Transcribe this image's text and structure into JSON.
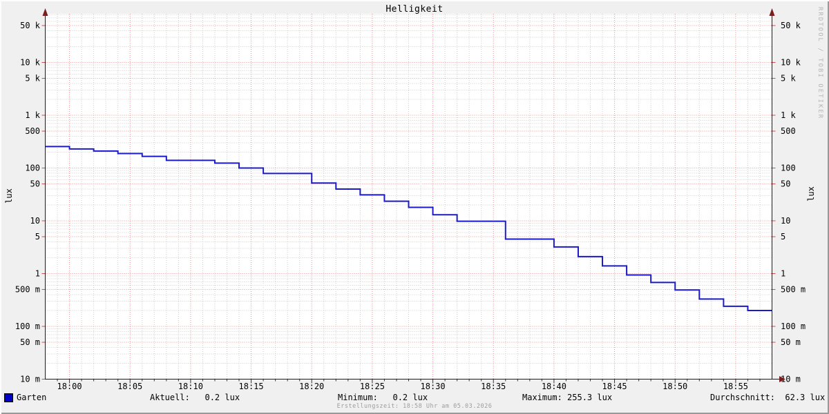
{
  "title": "Helligkeit",
  "watermark": "RRDTOOL / TOBI OETIKER",
  "footer": "Erstellungszeit: 18:58 Uhr am 05.03.2026",
  "y_axis": {
    "left_label": "lux",
    "right_label": "lux"
  },
  "legend": {
    "series_label": "Garten",
    "series_color": "#0000c8",
    "stats": [
      "Aktuell:   0.2 lux",
      "Minimum:   0.2 lux",
      "Maximum: 255.3 lux",
      "Durchschnitt:  62.3 lux"
    ]
  },
  "chart_data": {
    "type": "line",
    "line_style": "step-after",
    "title": "Helligkeit",
    "ylabel": "lux",
    "y_scale": "log",
    "ylim": [
      0.01,
      80000
    ],
    "x_range": [
      "17:58",
      "18:58"
    ],
    "x_ticks": [
      "18:00",
      "18:05",
      "18:10",
      "18:15",
      "18:20",
      "18:25",
      "18:30",
      "18:35",
      "18:40",
      "18:45",
      "18:50",
      "18:55"
    ],
    "y_ticks": [
      {
        "value": 50000,
        "label": "50 k"
      },
      {
        "value": 10000,
        "label": "10 k"
      },
      {
        "value": 5000,
        "label": "5 k"
      },
      {
        "value": 1000,
        "label": "1 k"
      },
      {
        "value": 500,
        "label": "500"
      },
      {
        "value": 100,
        "label": "100"
      },
      {
        "value": 50,
        "label": "50"
      },
      {
        "value": 10,
        "label": "10"
      },
      {
        "value": 5,
        "label": "5"
      },
      {
        "value": 1,
        "label": "1"
      },
      {
        "value": 0.5,
        "label": "500 m"
      },
      {
        "value": 0.1,
        "label": "100 m"
      },
      {
        "value": 0.05,
        "label": "50 m"
      },
      {
        "value": 0.01,
        "label": "10 m"
      }
    ],
    "grid": {
      "minor_color": "#cccccc",
      "major_color": "#f08f8f",
      "style": "dotted"
    },
    "axis_color": "#1c1c1c",
    "arrow_color": "#7a1e1e",
    "canvas_color": "#ffffff",
    "series": [
      {
        "name": "Garten",
        "color": "#1a1ac8",
        "points": [
          [
            "17:58",
            255.3
          ],
          [
            "18:00",
            230
          ],
          [
            "18:02",
            210
          ],
          [
            "18:04",
            188
          ],
          [
            "18:06",
            166
          ],
          [
            "18:08",
            140
          ],
          [
            "18:12",
            124
          ],
          [
            "18:14",
            100
          ],
          [
            "18:16",
            79
          ],
          [
            "18:20",
            52
          ],
          [
            "18:22",
            40
          ],
          [
            "18:24",
            31
          ],
          [
            "18:26",
            23.5
          ],
          [
            "18:28",
            18
          ],
          [
            "18:30",
            13
          ],
          [
            "18:32",
            9.8
          ],
          [
            "18:36",
            4.5
          ],
          [
            "18:40",
            3.2
          ],
          [
            "18:42",
            2.1
          ],
          [
            "18:44",
            1.4
          ],
          [
            "18:46",
            0.94
          ],
          [
            "18:48",
            0.68
          ],
          [
            "18:50",
            0.49
          ],
          [
            "18:52",
            0.33
          ],
          [
            "18:54",
            0.24
          ],
          [
            "18:56",
            0.2
          ]
        ]
      }
    ],
    "stats": {
      "aktuell_lux": 0.2,
      "minimum_lux": 0.2,
      "maximum_lux": 255.3,
      "durchschnitt_lux": 62.3
    }
  }
}
